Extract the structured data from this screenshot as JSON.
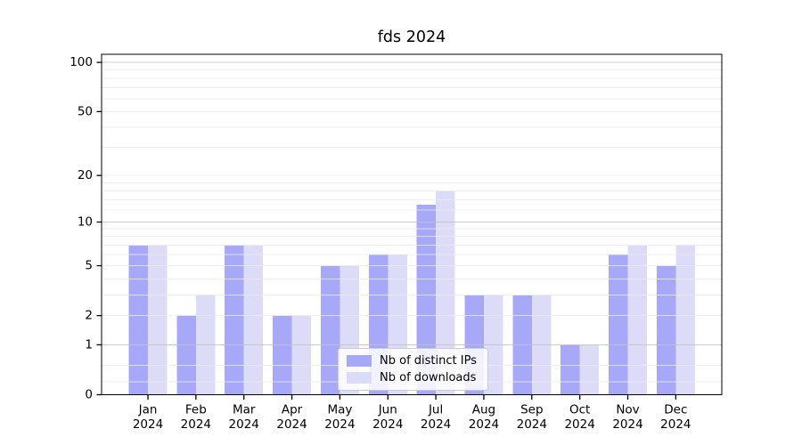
{
  "figure": {
    "background": "#ffffff"
  },
  "chart_data": {
    "type": "bar",
    "title": "fds 2024",
    "categories": [
      "Jan\n2024",
      "Feb\n2024",
      "Mar\n2024",
      "Apr\n2024",
      "May\n2024",
      "Jun\n2024",
      "Jul\n2024",
      "Aug\n2024",
      "Sep\n2024",
      "Oct\n2024",
      "Nov\n2024",
      "Dec\n2024"
    ],
    "series": [
      {
        "name": "Nb of distinct IPs",
        "color": "#a8a8f8",
        "values": [
          7,
          2,
          7,
          2,
          5,
          6,
          13,
          3,
          3,
          1,
          6,
          5
        ]
      },
      {
        "name": "Nb of downloads",
        "color": "#dcdcf9",
        "values": [
          7,
          3,
          7,
          2,
          5,
          6,
          16,
          3,
          3,
          1,
          7,
          7
        ]
      }
    ],
    "y_axis": {
      "scale": "log1p",
      "tick_values": [
        0,
        1,
        2,
        5,
        10,
        20,
        50,
        100
      ],
      "major_gridlines": [
        1,
        10,
        100
      ],
      "minor_gridlines": [
        0.2,
        0.5,
        2,
        3,
        4,
        5,
        6,
        7,
        8,
        9,
        12,
        14,
        16,
        18,
        20,
        30,
        40,
        50,
        60,
        70,
        80,
        90
      ],
      "range": [
        0,
        112
      ]
    },
    "legend": {
      "position": "lower center"
    },
    "grid": true,
    "colors": {
      "major_gridline": "#c2c2c2",
      "minor_gridline": "#ececec",
      "axis": "#000000",
      "tick_label": "#000000"
    }
  }
}
